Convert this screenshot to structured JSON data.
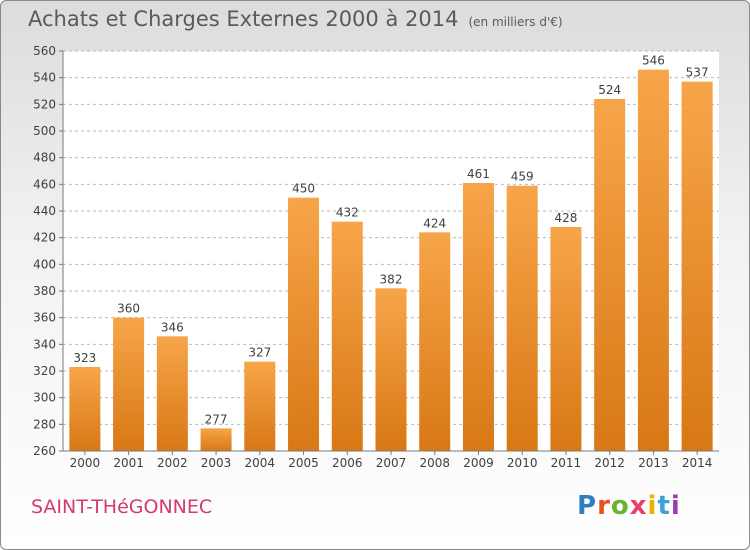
{
  "title": "Achats et Charges Externes 2000 à 2014",
  "subtitle": "(en milliers d'€)",
  "town": "SAINT-THéGONNEC",
  "logo": {
    "text": "Proxiti",
    "letter_colors": [
      "#2f7fc0",
      "#e8501e",
      "#6fb02e",
      "#e83f6f",
      "#f0b000",
      "#3ca2d8",
      "#9a3fae"
    ]
  },
  "colors": {
    "bar_light": "#f7a54a",
    "bar_dark": "#d87815",
    "grid": "#b9b9b9",
    "axis_text": "#404040"
  },
  "chart_data": {
    "type": "bar",
    "categories": [
      "2000",
      "2001",
      "2002",
      "2003",
      "2004",
      "2005",
      "2006",
      "2007",
      "2008",
      "2009",
      "2010",
      "2011",
      "2012",
      "2013",
      "2014"
    ],
    "values": [
      323,
      360,
      346,
      277,
      327,
      450,
      432,
      382,
      424,
      461,
      459,
      428,
      524,
      546,
      537
    ],
    "ylim": [
      260,
      560
    ],
    "yticks": [
      260,
      280,
      300,
      320,
      340,
      360,
      380,
      400,
      420,
      440,
      460,
      480,
      500,
      520,
      540,
      560
    ],
    "grid": true,
    "data_labels": true
  }
}
